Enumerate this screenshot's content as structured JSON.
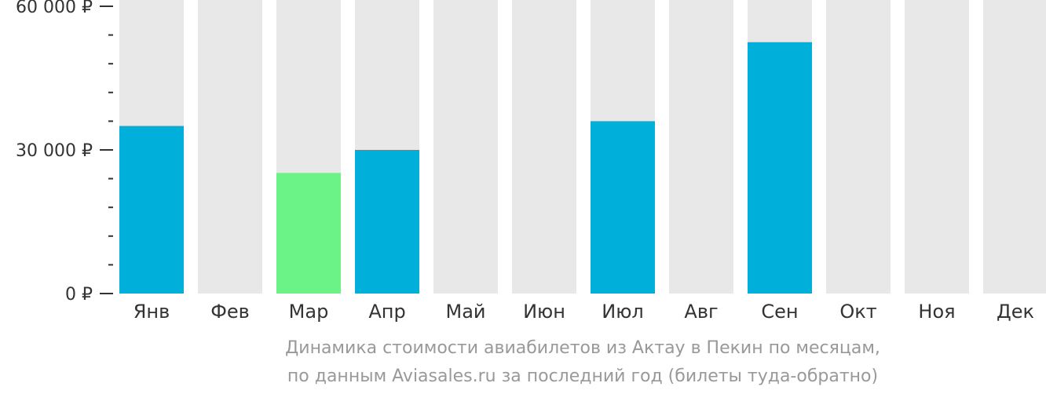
{
  "chart_data": {
    "type": "bar",
    "categories": [
      "Янв",
      "Фев",
      "Мар",
      "Апр",
      "Май",
      "Июн",
      "Июл",
      "Авг",
      "Сен",
      "Окт",
      "Ноя",
      "Дек"
    ],
    "values": [
      35000,
      null,
      25200,
      30000,
      null,
      null,
      36000,
      null,
      52500,
      null,
      null,
      null
    ],
    "highlight": [
      false,
      false,
      true,
      false,
      false,
      false,
      false,
      false,
      false,
      false,
      false,
      false
    ],
    "ylim": [
      0,
      60000
    ],
    "yticks": [
      0,
      30000,
      60000
    ],
    "ytick_labels": [
      "0 ₽",
      "30 000 ₽",
      "60 000 ₽"
    ],
    "minor_ticks_between": 4,
    "colors": {
      "bar": "#00b0da",
      "bar_highlight": "#6cf388",
      "background_column": "#e8e8e8"
    },
    "legend": "none",
    "grid": false
  },
  "caption": {
    "line1": "Динамика стоимости авиабилетов из Актау в Пекин по месяцам,",
    "line2": "по данным Aviasales.ru за последний год (билеты туда-обратно)"
  }
}
